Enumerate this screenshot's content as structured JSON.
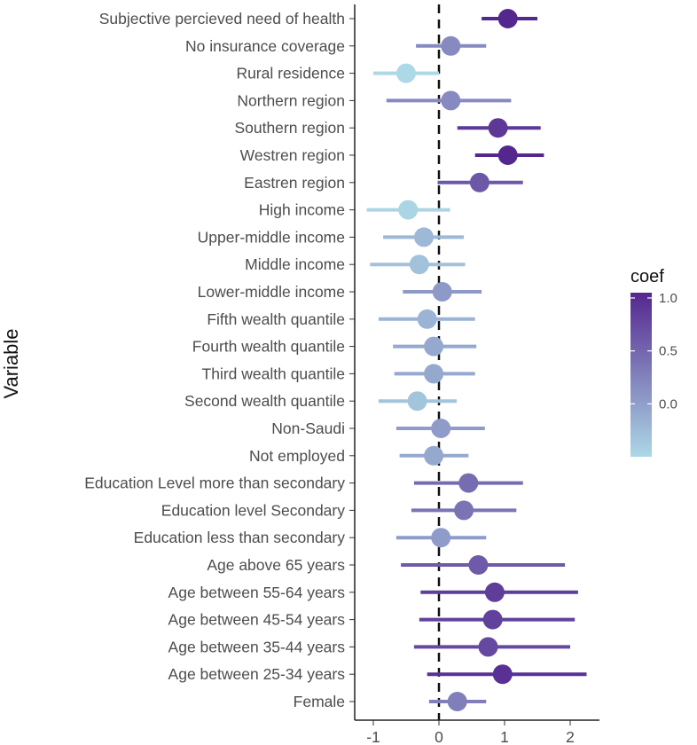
{
  "chart_data": {
    "type": "scatter",
    "subtype": "forest-plot",
    "ylabel": "Variable",
    "xlabel": "",
    "xlim": [
      -1.3,
      2.45
    ],
    "x_ticks": [
      -1,
      0,
      1,
      2
    ],
    "x_tick_labels": [
      "-1",
      "0",
      "1",
      "2"
    ],
    "reference_line": 0,
    "legend": {
      "title": "coef",
      "position": "right",
      "range": [
        -0.5,
        1.05
      ],
      "ticks": [
        1.0,
        0.5,
        0.0
      ],
      "tick_labels": [
        "1.0",
        "0.5",
        "0.0"
      ],
      "color_low": "#ADD8E6",
      "color_high": "#54278F"
    },
    "variables": [
      {
        "label": "Subjective percieved need of health",
        "coef": 1.05,
        "lower": 0.65,
        "upper": 1.5
      },
      {
        "label": "No insurance coverage",
        "coef": 0.18,
        "lower": -0.35,
        "upper": 0.72
      },
      {
        "label": "Rural residence",
        "coef": -0.5,
        "lower": -1.0,
        "upper": 0.0
      },
      {
        "label": "Northern region",
        "coef": 0.18,
        "lower": -0.8,
        "upper": 1.1
      },
      {
        "label": "Southern region",
        "coef": 0.9,
        "lower": 0.28,
        "upper": 1.55
      },
      {
        "label": "Westren region",
        "coef": 1.05,
        "lower": 0.55,
        "upper": 1.6
      },
      {
        "label": "Eastren region",
        "coef": 0.62,
        "lower": -0.02,
        "upper": 1.28
      },
      {
        "label": "High income",
        "coef": -0.47,
        "lower": -1.1,
        "upper": 0.17
      },
      {
        "label": "Upper-middle income",
        "coef": -0.23,
        "lower": -0.85,
        "upper": 0.38
      },
      {
        "label": "Middle income",
        "coef": -0.3,
        "lower": -1.05,
        "upper": 0.4
      },
      {
        "label": "Lower-middle income",
        "coef": 0.05,
        "lower": -0.55,
        "upper": 0.65
      },
      {
        "label": "Fifth wealth quantile",
        "coef": -0.18,
        "lower": -0.92,
        "upper": 0.55
      },
      {
        "label": "Fourth wealth quantile",
        "coef": -0.08,
        "lower": -0.7,
        "upper": 0.57
      },
      {
        "label": "Third wealth quantile",
        "coef": -0.08,
        "lower": -0.68,
        "upper": 0.55
      },
      {
        "label": "Second wealth quantile",
        "coef": -0.33,
        "lower": -0.92,
        "upper": 0.27
      },
      {
        "label": "Non-Saudi",
        "coef": 0.03,
        "lower": -0.65,
        "upper": 0.7
      },
      {
        "label": "Not employed",
        "coef": -0.08,
        "lower": -0.6,
        "upper": 0.45
      },
      {
        "label": "Education Level more than secondary",
        "coef": 0.45,
        "lower": -0.38,
        "upper": 1.28
      },
      {
        "label": "Education level Secondary",
        "coef": 0.38,
        "lower": -0.42,
        "upper": 1.18
      },
      {
        "label": "Education less than secondary",
        "coef": 0.03,
        "lower": -0.65,
        "upper": 0.72
      },
      {
        "label": "Age above 65 years",
        "coef": 0.6,
        "lower": -0.58,
        "upper": 1.92
      },
      {
        "label": "Age between 55-64 years",
        "coef": 0.85,
        "lower": -0.28,
        "upper": 2.12
      },
      {
        "label": "Age between 45-54 years",
        "coef": 0.82,
        "lower": -0.3,
        "upper": 2.07
      },
      {
        "label": "Age between 35-44 years",
        "coef": 0.75,
        "lower": -0.38,
        "upper": 2.0
      },
      {
        "label": "Age between 25-34 years",
        "coef": 0.97,
        "lower": -0.18,
        "upper": 2.25
      },
      {
        "label": "Female",
        "coef": 0.28,
        "lower": -0.15,
        "upper": 0.72
      }
    ]
  }
}
